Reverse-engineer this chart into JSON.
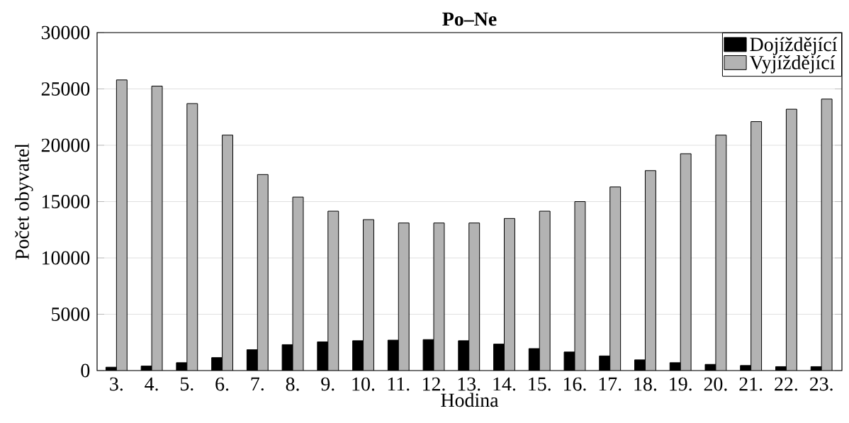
{
  "chart_data": {
    "type": "bar",
    "title": "Po–Ne",
    "xlabel": "Hodina",
    "ylabel": "Počet obyvatel",
    "categories": [
      "3.",
      "4.",
      "5.",
      "6.",
      "7.",
      "8.",
      "9.",
      "10.",
      "11.",
      "12.",
      "13.",
      "14.",
      "15.",
      "16.",
      "17.",
      "18.",
      "19.",
      "20.",
      "21.",
      "22.",
      "23."
    ],
    "series": [
      {
        "name": "Dojíždějící",
        "color": "#000000",
        "values": [
          300,
          400,
          700,
          1150,
          1850,
          2300,
          2550,
          2650,
          2700,
          2750,
          2650,
          2350,
          1950,
          1650,
          1300,
          950,
          700,
          550,
          450,
          350,
          350
        ]
      },
      {
        "name": "Vyjíždějící",
        "color": "#b3b3b3",
        "values": [
          25800,
          25250,
          23700,
          20900,
          17400,
          15400,
          14150,
          13400,
          13100,
          13100,
          13100,
          13500,
          14150,
          15000,
          16300,
          17750,
          19250,
          20900,
          22100,
          23200,
          24100
        ]
      }
    ],
    "ylim": [
      0,
      30000
    ],
    "yticks": [
      0,
      5000,
      10000,
      15000,
      20000,
      25000,
      30000
    ],
    "grid": "y",
    "legend": "top right"
  }
}
